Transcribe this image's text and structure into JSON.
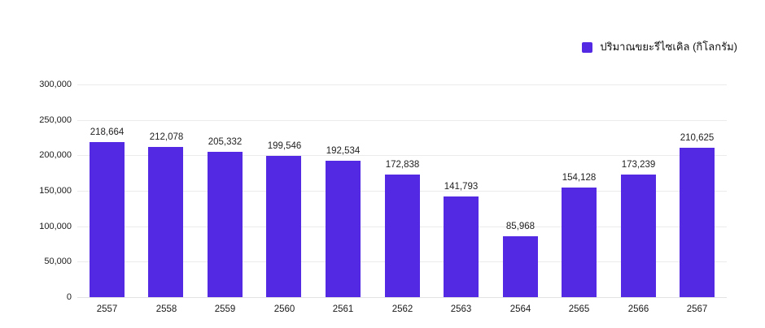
{
  "legend": {
    "label": "ปริมาณขยะรีไซเคิล (กิโลกรัม)",
    "swatch_color": "#5429E4"
  },
  "chart_data": {
    "type": "bar",
    "title": "",
    "series_name": "ปริมาณขยะรีไซเคิล (กิโลกรัม)",
    "categories": [
      "2557",
      "2558",
      "2559",
      "2560",
      "2561",
      "2562",
      "2563",
      "2564",
      "2565",
      "2566",
      "2567"
    ],
    "values": [
      218664,
      212078,
      205332,
      199546,
      192534,
      172838,
      141793,
      85968,
      154128,
      173239,
      210625
    ],
    "value_labels": [
      "218,664",
      "212,078",
      "205,332",
      "199,546",
      "192,534",
      "172,838",
      "141,793",
      "85,968",
      "154,128",
      "173,239",
      "210,625"
    ],
    "xlabel": "",
    "ylabel": "",
    "ylim": [
      0,
      300000
    ],
    "y_tick_step": 50000,
    "y_tick_labels": [
      "300,000",
      "250,000",
      "200,000",
      "150,000",
      "100,000",
      "50,000",
      "0"
    ],
    "bar_color": "#5429E4",
    "grid": "horizontal",
    "legend_position": "top-right"
  }
}
